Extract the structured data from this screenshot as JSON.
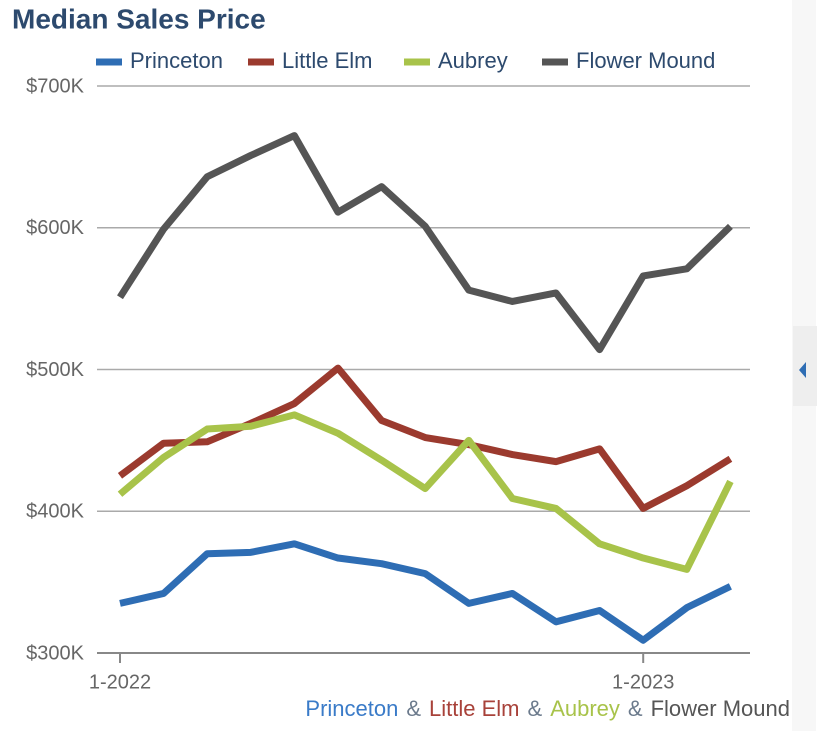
{
  "chart_data": {
    "type": "line",
    "title": "Median Sales Price",
    "categories": [
      "1-2022",
      null,
      null,
      null,
      null,
      null,
      null,
      null,
      null,
      null,
      null,
      null,
      "1-2023",
      null,
      null
    ],
    "series": [
      {
        "name": "Princeton",
        "color": "#2e6db4",
        "values": [
          335000,
          342000,
          370000,
          371000,
          377000,
          367000,
          363000,
          356000,
          335000,
          342000,
          322000,
          330000,
          309000,
          332000,
          347000
        ]
      },
      {
        "name": "Little Elm",
        "color": "#9b3a2e",
        "values": [
          425000,
          448000,
          449000,
          462000,
          476000,
          501000,
          464000,
          452000,
          447000,
          440000,
          435000,
          444000,
          402000,
          418000,
          437000
        ]
      },
      {
        "name": "Aubrey",
        "color": "#a8c34a",
        "values": [
          412000,
          438000,
          458000,
          460000,
          468000,
          455000,
          436000,
          416000,
          450000,
          409000,
          402000,
          377000,
          367000,
          359000,
          421000
        ]
      },
      {
        "name": "Flower Mound",
        "color": "#555555",
        "values": [
          551000,
          599000,
          636000,
          651000,
          665000,
          611000,
          629000,
          601000,
          556000,
          548000,
          554000,
          514000,
          566000,
          571000,
          601000
        ]
      }
    ],
    "ylim": [
      300000,
      700000
    ],
    "yticks": [
      {
        "value": 300000,
        "label": "$300K"
      },
      {
        "value": 400000,
        "label": "$400K"
      },
      {
        "value": 500000,
        "label": "$500K"
      },
      {
        "value": 600000,
        "label": "$600K"
      },
      {
        "value": 700000,
        "label": "$700K"
      }
    ],
    "grid": true,
    "footer_separator": "&"
  }
}
